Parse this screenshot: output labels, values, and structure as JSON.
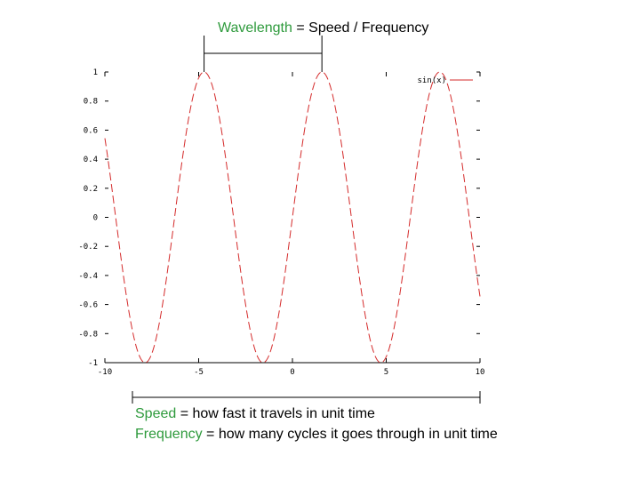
{
  "header": {
    "term": "Wavelength",
    "rest": " = Speed / Frequency"
  },
  "notes": {
    "speed": {
      "term": "Speed",
      "rest": " = how fast it travels in unit time"
    },
    "frequency": {
      "term": "Frequency",
      "rest": " = how many cycles it goes through in unit time"
    }
  },
  "colors": {
    "accent_text": "#2e9a3c",
    "curve": "#d42a2a",
    "axis": "#000000"
  },
  "chart_data": {
    "type": "line",
    "title": "",
    "xlabel": "",
    "ylabel": "",
    "xlim": [
      -10,
      10
    ],
    "ylim": [
      -1,
      1
    ],
    "xticks": [
      -10,
      -5,
      0,
      5,
      10
    ],
    "xtick_labels": [
      "-10",
      "-5",
      "0",
      "5",
      "10"
    ],
    "yticks": [
      1,
      0.8,
      0.6,
      0.4,
      0.2,
      0,
      -0.2,
      -0.4,
      -0.6,
      -0.8,
      -1
    ],
    "ytick_labels": [
      "1",
      "0.8",
      "0.6",
      "0.4",
      "0.2",
      "0",
      "-0.2",
      "-0.4",
      "-0.6",
      "-0.8",
      "-1"
    ],
    "legend": {
      "label": "sin(x)",
      "position": "top-right"
    },
    "series": [
      {
        "name": "sin(x)",
        "function": "sin",
        "x_start": -10,
        "x_end": 10,
        "style": "dashed"
      }
    ],
    "annotation": {
      "type": "bracket",
      "label_ref": "header",
      "x_from": -4.712,
      "x_to": 1.571,
      "position": "top"
    },
    "grid": false
  }
}
